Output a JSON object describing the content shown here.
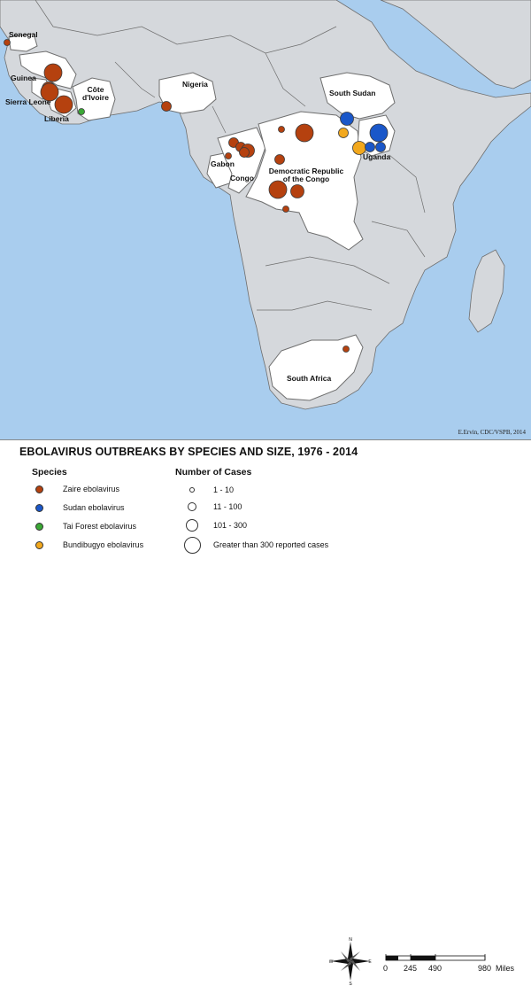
{
  "colors": {
    "ocean": "#a9cdee",
    "land_other": "#d5d8dc",
    "land_affected": "#ffffff",
    "border": "#6e6e6e",
    "zaire": "#b5410f",
    "sudan": "#1a57c9",
    "tai_forest": "#3aa835",
    "bundibugyo": "#f2a81d"
  },
  "credit": "E.Ervin, CDC/VSPB, 2014",
  "countries": [
    {
      "id": "senegal",
      "label": "Senegal"
    },
    {
      "id": "guinea",
      "label": "Guinea"
    },
    {
      "id": "sierra-leone",
      "label": "Sierra Leone"
    },
    {
      "id": "liberia",
      "label": "Liberia"
    },
    {
      "id": "cote-divoire",
      "label": "Côte\nd'Ivoire"
    },
    {
      "id": "nigeria",
      "label": "Nigeria"
    },
    {
      "id": "gabon",
      "label": "Gabon"
    },
    {
      "id": "congo",
      "label": "Congo"
    },
    {
      "id": "drc",
      "label": "Democratic Republic\nof the Congo"
    },
    {
      "id": "south-sudan",
      "label": "South Sudan"
    },
    {
      "id": "uganda",
      "label": "Uganda"
    },
    {
      "id": "south-africa",
      "label": "South Africa"
    }
  ],
  "legend": {
    "title": "EBOLAVIRUS OUTBREAKS BY SPECIES AND SIZE, 1976 - 2014",
    "species_heading": "Species",
    "species": [
      {
        "label": "Zaire ebolavirus",
        "color": "#b5410f"
      },
      {
        "label": "Sudan ebolavirus",
        "color": "#1a57c9"
      },
      {
        "label": "Tai Forest ebolavirus",
        "color": "#3aa835"
      },
      {
        "label": "Bundibugyo ebolavirus",
        "color": "#f2a81d"
      }
    ],
    "size_heading": "Number of Cases",
    "sizes": [
      {
        "label": "1 - 10",
        "class": 1
      },
      {
        "label": "11 - 100",
        "class": 2
      },
      {
        "label": "101 - 300",
        "class": 3
      },
      {
        "label": "Greater than 300 reported cases",
        "class": 4
      }
    ]
  },
  "compass": {
    "n": "N",
    "s": "S",
    "e": "E",
    "w": "W"
  },
  "scale": {
    "ticks": [
      "0",
      "245",
      "490",
      "980"
    ],
    "unit": "Miles"
  }
}
